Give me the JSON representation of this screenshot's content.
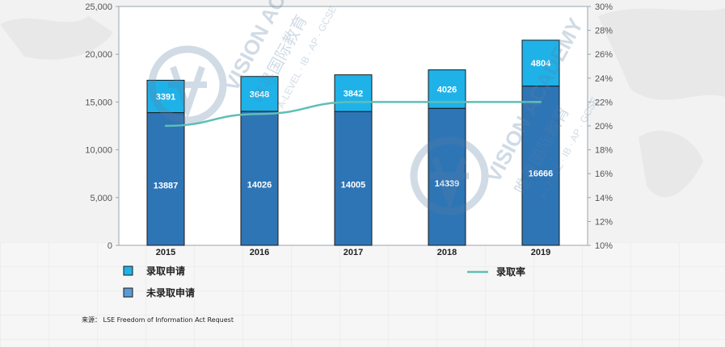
{
  "chart_data": {
    "type": "bar",
    "stacked": true,
    "categories": [
      "2015",
      "2016",
      "2017",
      "2018",
      "2019"
    ],
    "series": [
      {
        "name": "未录取申请",
        "values": [
          13887,
          14026,
          14005,
          14339,
          16666
        ],
        "color": "#2e75b6"
      },
      {
        "name": "录取申请",
        "values": [
          3391,
          3648,
          3842,
          4026,
          4804
        ],
        "color": "#1fb2e8"
      }
    ],
    "line_series": {
      "name": "录取率",
      "values": [
        0.2,
        0.21,
        0.22,
        0.22,
        0.22
      ],
      "color": "#5fbfb6",
      "axis": "right"
    },
    "ylim": [
      0,
      25000
    ],
    "yticks": [
      "0",
      "5,000",
      "10,000",
      "15,000",
      "20,000",
      "25,000"
    ],
    "y2lim": [
      0.1,
      0.3
    ],
    "y2ticks": [
      "10%",
      "12%",
      "14%",
      "16%",
      "18%",
      "20%",
      "22%",
      "24%",
      "26%",
      "28%",
      "30%"
    ],
    "legend": {
      "left": [
        {
          "label": "录取申请",
          "color": "#1fb2e8"
        },
        {
          "label": "未录取申请",
          "color": "#5b9bd5"
        }
      ],
      "right": {
        "label": "录取率",
        "color": "#5fbfb6"
      }
    },
    "source": "来源： LSE Freedom of Information Act Request",
    "watermark": [
      "VISION ACADEMY",
      "唯寻国际教育",
      "A-LEVEL · IB · AP · GCSE"
    ],
    "grid": false
  }
}
